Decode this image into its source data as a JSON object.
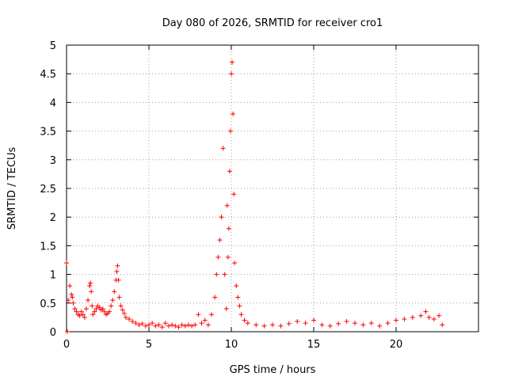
{
  "chart_data": {
    "type": "scatter",
    "title": "Day 080 of 2026, SRMTID for receiver cro1",
    "xlabel": "GPS time / hours",
    "ylabel": "SRMTID / TECUs",
    "xlim": [
      0,
      25
    ],
    "ylim": [
      0,
      5
    ],
    "xticks": [
      0,
      5,
      10,
      15,
      20
    ],
    "yticks": [
      0,
      0.5,
      1,
      1.5,
      2,
      2.5,
      3,
      3.5,
      4,
      4.5,
      5
    ],
    "xtick_labels": [
      "0",
      "5",
      "10",
      "15",
      "20"
    ],
    "ytick_labels": [
      "0",
      "0.5",
      "1",
      "1.5",
      "2",
      "2.5",
      "3",
      "3.5",
      "4",
      "4.5",
      "5"
    ],
    "grid": true,
    "marker": "+",
    "color": "#ff0000",
    "series": [
      {
        "name": "SRMTID",
        "x": [
          0.0,
          0.05,
          0.1,
          0.2,
          0.3,
          0.35,
          0.4,
          0.5,
          0.6,
          0.7,
          0.8,
          0.9,
          1.0,
          1.1,
          1.2,
          1.3,
          1.4,
          1.45,
          1.5,
          1.55,
          1.6,
          1.7,
          1.8,
          1.9,
          2.0,
          2.1,
          2.2,
          2.3,
          2.4,
          2.5,
          2.6,
          2.7,
          2.8,
          2.9,
          3.0,
          3.05,
          3.1,
          3.15,
          3.2,
          3.3,
          3.4,
          3.5,
          3.6,
          3.8,
          4.0,
          4.2,
          4.4,
          4.6,
          4.8,
          5.0,
          5.2,
          5.4,
          5.6,
          5.8,
          6.0,
          6.2,
          6.4,
          6.6,
          6.8,
          7.0,
          7.2,
          7.4,
          7.6,
          7.8,
          8.0,
          8.2,
          8.4,
          8.6,
          8.8,
          9.0,
          9.1,
          9.2,
          9.3,
          9.4,
          9.5,
          9.6,
          9.7,
          9.75,
          9.8,
          9.85,
          9.9,
          9.95,
          10.0,
          10.05,
          10.1,
          10.15,
          10.2,
          10.3,
          10.4,
          10.5,
          10.6,
          10.8,
          11.0,
          11.5,
          12.0,
          12.5,
          13.0,
          13.5,
          14.0,
          14.5,
          15.0,
          15.5,
          16.0,
          16.5,
          17.0,
          17.5,
          18.0,
          18.5,
          19.0,
          19.5,
          20.0,
          20.5,
          21.0,
          21.5,
          21.8,
          22.0,
          22.3,
          22.6,
          22.8
        ],
        "y": [
          1.2,
          0.0,
          0.55,
          0.8,
          0.65,
          0.6,
          0.5,
          0.4,
          0.35,
          0.3,
          0.28,
          0.35,
          0.3,
          0.25,
          0.4,
          0.55,
          0.8,
          0.85,
          0.7,
          0.45,
          0.3,
          0.35,
          0.4,
          0.45,
          0.42,
          0.38,
          0.4,
          0.35,
          0.3,
          0.32,
          0.35,
          0.45,
          0.55,
          0.7,
          0.9,
          1.05,
          1.15,
          0.9,
          0.6,
          0.45,
          0.38,
          0.32,
          0.25,
          0.22,
          0.18,
          0.15,
          0.12,
          0.14,
          0.1,
          0.12,
          0.15,
          0.1,
          0.12,
          0.08,
          0.15,
          0.1,
          0.12,
          0.1,
          0.08,
          0.12,
          0.1,
          0.12,
          0.1,
          0.12,
          0.3,
          0.15,
          0.2,
          0.12,
          0.3,
          0.6,
          1.0,
          1.3,
          1.6,
          2.0,
          3.2,
          1.0,
          0.4,
          2.2,
          1.3,
          1.8,
          2.8,
          3.5,
          4.5,
          4.7,
          3.8,
          2.4,
          1.2,
          0.8,
          0.6,
          0.45,
          0.3,
          0.2,
          0.15,
          0.12,
          0.1,
          0.12,
          0.1,
          0.14,
          0.18,
          0.15,
          0.2,
          0.12,
          0.1,
          0.14,
          0.18,
          0.15,
          0.12,
          0.15,
          0.1,
          0.15,
          0.2,
          0.22,
          0.25,
          0.28,
          0.35,
          0.25,
          0.22,
          0.28,
          0.12
        ]
      }
    ]
  }
}
